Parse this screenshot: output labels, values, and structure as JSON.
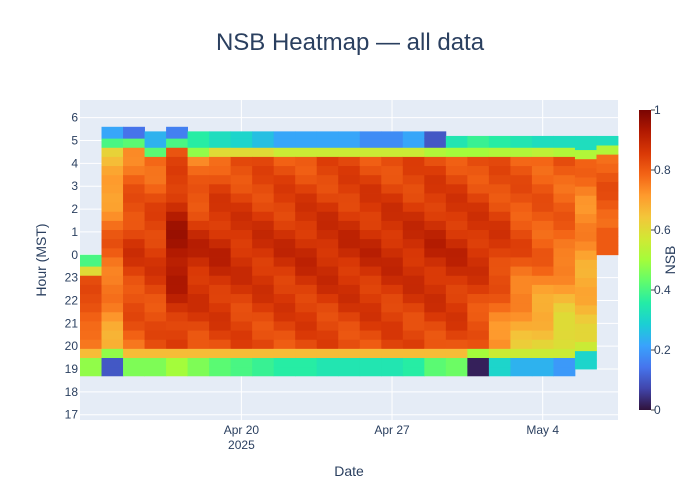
{
  "chart_data": {
    "type": "heatmap",
    "title": "NSB Heatmap — all data",
    "xlabel": "Date",
    "ylabel": "Hour (MST)",
    "colorbar_title": "NSB",
    "colorscale": "Turbo",
    "zlim": [
      0,
      1
    ],
    "colorbar_ticks": [
      "0",
      "0.2",
      "0.4",
      "0.6",
      "0.8",
      "1"
    ],
    "x_start": "2025-04-13",
    "x_end": "2025-05-07",
    "x_ticks": [
      {
        "date": "2025-04-20",
        "label": "Apr 20",
        "sublabel": "2025"
      },
      {
        "date": "2025-04-27",
        "label": "Apr 27",
        "sublabel": ""
      },
      {
        "date": "2025-05-04",
        "label": "May 4",
        "sublabel": ""
      }
    ],
    "y_ticks": [
      "17",
      "18",
      "19",
      "20",
      "21",
      "22",
      "23",
      "0",
      "1",
      "2",
      "3",
      "4",
      "5",
      "6"
    ],
    "grid": true,
    "background": "#e5ecf6",
    "columns": [
      {
        "date": "2025-04-13",
        "y0": 18.7,
        "y1": 24.0,
        "start": [
          0.48,
          0.66
        ],
        "core": [
          0.7,
          0.84,
          0.78
        ],
        "end": [
          0.6,
          0.4
        ]
      },
      {
        "date": "2025-04-14",
        "y0": 18.7,
        "y1": 29.6,
        "start": [
          0.1,
          0.48
        ],
        "core": [
          0.68,
          0.8,
          0.62
        ],
        "end": [
          0.4,
          0.22
        ]
      },
      {
        "date": "2025-04-15",
        "y0": 18.7,
        "y1": 29.6,
        "start": [
          0.46,
          0.66
        ],
        "core": [
          0.78,
          0.86,
          0.74
        ],
        "end": [
          0.42,
          0.14
        ]
      },
      {
        "date": "2025-04-16",
        "y0": 18.7,
        "y1": 29.4,
        "start": [
          0.46,
          0.66
        ],
        "core": [
          0.8,
          0.86,
          0.76
        ],
        "end": [
          0.42,
          0.24
        ]
      },
      {
        "date": "2025-04-17",
        "y0": 18.7,
        "y1": 29.6,
        "start": [
          0.5,
          0.66
        ],
        "core": [
          0.82,
          0.96,
          0.78
        ],
        "end": [
          0.4,
          0.16
        ]
      },
      {
        "date": "2025-04-18",
        "y0": 18.7,
        "y1": 29.4,
        "start": [
          0.46,
          0.66
        ],
        "core": [
          0.82,
          0.9,
          0.72
        ],
        "end": [
          0.48,
          0.36
        ]
      },
      {
        "date": "2025-04-19",
        "y0": 18.7,
        "y1": 29.4,
        "start": [
          0.42,
          0.66
        ],
        "core": [
          0.82,
          0.9,
          0.78
        ],
        "end": [
          0.6,
          0.32
        ]
      },
      {
        "date": "2025-04-20",
        "y0": 18.7,
        "y1": 29.4,
        "start": [
          0.4,
          0.66
        ],
        "core": [
          0.82,
          0.88,
          0.8
        ],
        "end": [
          0.6,
          0.3
        ]
      },
      {
        "date": "2025-04-21",
        "y0": 18.7,
        "y1": 29.4,
        "start": [
          0.38,
          0.66
        ],
        "core": [
          0.82,
          0.88,
          0.8
        ],
        "end": [
          0.6,
          0.26
        ]
      },
      {
        "date": "2025-04-22",
        "y0": 18.7,
        "y1": 29.4,
        "start": [
          0.36,
          0.66
        ],
        "core": [
          0.82,
          0.88,
          0.8
        ],
        "end": [
          0.56,
          0.22
        ]
      },
      {
        "date": "2025-04-23",
        "y0": 18.7,
        "y1": 29.4,
        "start": [
          0.36,
          0.66
        ],
        "core": [
          0.82,
          0.89,
          0.8
        ],
        "end": [
          0.56,
          0.22
        ]
      },
      {
        "date": "2025-04-24",
        "y0": 18.7,
        "y1": 29.4,
        "start": [
          0.34,
          0.66
        ],
        "core": [
          0.82,
          0.89,
          0.81
        ],
        "end": [
          0.56,
          0.22
        ]
      },
      {
        "date": "2025-04-25",
        "y0": 18.7,
        "y1": 29.4,
        "start": [
          0.34,
          0.66
        ],
        "core": [
          0.82,
          0.89,
          0.81
        ],
        "end": [
          0.56,
          0.22
        ]
      },
      {
        "date": "2025-04-26",
        "y0": 18.7,
        "y1": 29.4,
        "start": [
          0.34,
          0.66
        ],
        "core": [
          0.82,
          0.89,
          0.81
        ],
        "end": [
          0.56,
          0.18
        ]
      },
      {
        "date": "2025-04-27",
        "y0": 18.7,
        "y1": 29.4,
        "start": [
          0.34,
          0.66
        ],
        "core": [
          0.82,
          0.89,
          0.81
        ],
        "end": [
          0.56,
          0.18
        ]
      },
      {
        "date": "2025-04-28",
        "y0": 18.7,
        "y1": 29.4,
        "start": [
          0.36,
          0.66
        ],
        "core": [
          0.82,
          0.89,
          0.81
        ],
        "end": [
          0.56,
          0.22
        ]
      },
      {
        "date": "2025-04-29",
        "y0": 18.7,
        "y1": 29.4,
        "start": [
          0.42,
          0.66
        ],
        "core": [
          0.82,
          0.9,
          0.81
        ],
        "end": [
          0.52,
          0.1
        ]
      },
      {
        "date": "2025-04-30",
        "y0": 18.7,
        "y1": 29.2,
        "start": [
          0.44,
          0.66
        ],
        "core": [
          0.82,
          0.89,
          0.81
        ],
        "end": [
          0.5,
          0.34
        ]
      },
      {
        "date": "2025-05-01",
        "y0": 18.7,
        "y1": 29.2,
        "start": [
          0.02,
          0.5
        ],
        "core": [
          0.78,
          0.88,
          0.8
        ],
        "end": [
          0.5,
          0.38
        ]
      },
      {
        "date": "2025-05-02",
        "y0": 18.7,
        "y1": 29.2,
        "start": [
          0.3,
          0.56
        ],
        "core": [
          0.7,
          0.86,
          0.8
        ],
        "end": [
          0.52,
          0.36
        ]
      },
      {
        "date": "2025-05-03",
        "y0": 18.7,
        "y1": 29.2,
        "start": [
          0.24,
          0.56
        ],
        "core": [
          0.64,
          0.82,
          0.8
        ],
        "end": [
          0.52,
          0.34
        ]
      },
      {
        "date": "2025-05-04",
        "y0": 18.7,
        "y1": 29.2,
        "start": [
          0.24,
          0.56
        ],
        "core": [
          0.6,
          0.8,
          0.8
        ],
        "end": [
          0.54,
          0.32
        ]
      },
      {
        "date": "2025-05-05",
        "y0": 18.7,
        "y1": 29.2,
        "start": [
          0.2,
          0.56
        ],
        "core": [
          0.54,
          0.78,
          0.8
        ],
        "end": [
          0.52,
          0.32
        ]
      },
      {
        "date": "2025-05-06",
        "y0": 19.0,
        "y1": 29.2,
        "start": [
          0.3,
          0.56
        ],
        "core": [
          0.62,
          0.72,
          0.78
        ],
        "end": [
          0.52,
          0.32
        ]
      },
      {
        "date": "2025-05-07",
        "y0": 24.0,
        "y1": 29.2,
        "start": [
          0.8,
          0.8
        ],
        "core": [
          0.8,
          0.8,
          0.8
        ],
        "end": [
          0.52,
          0.32
        ]
      }
    ]
  }
}
